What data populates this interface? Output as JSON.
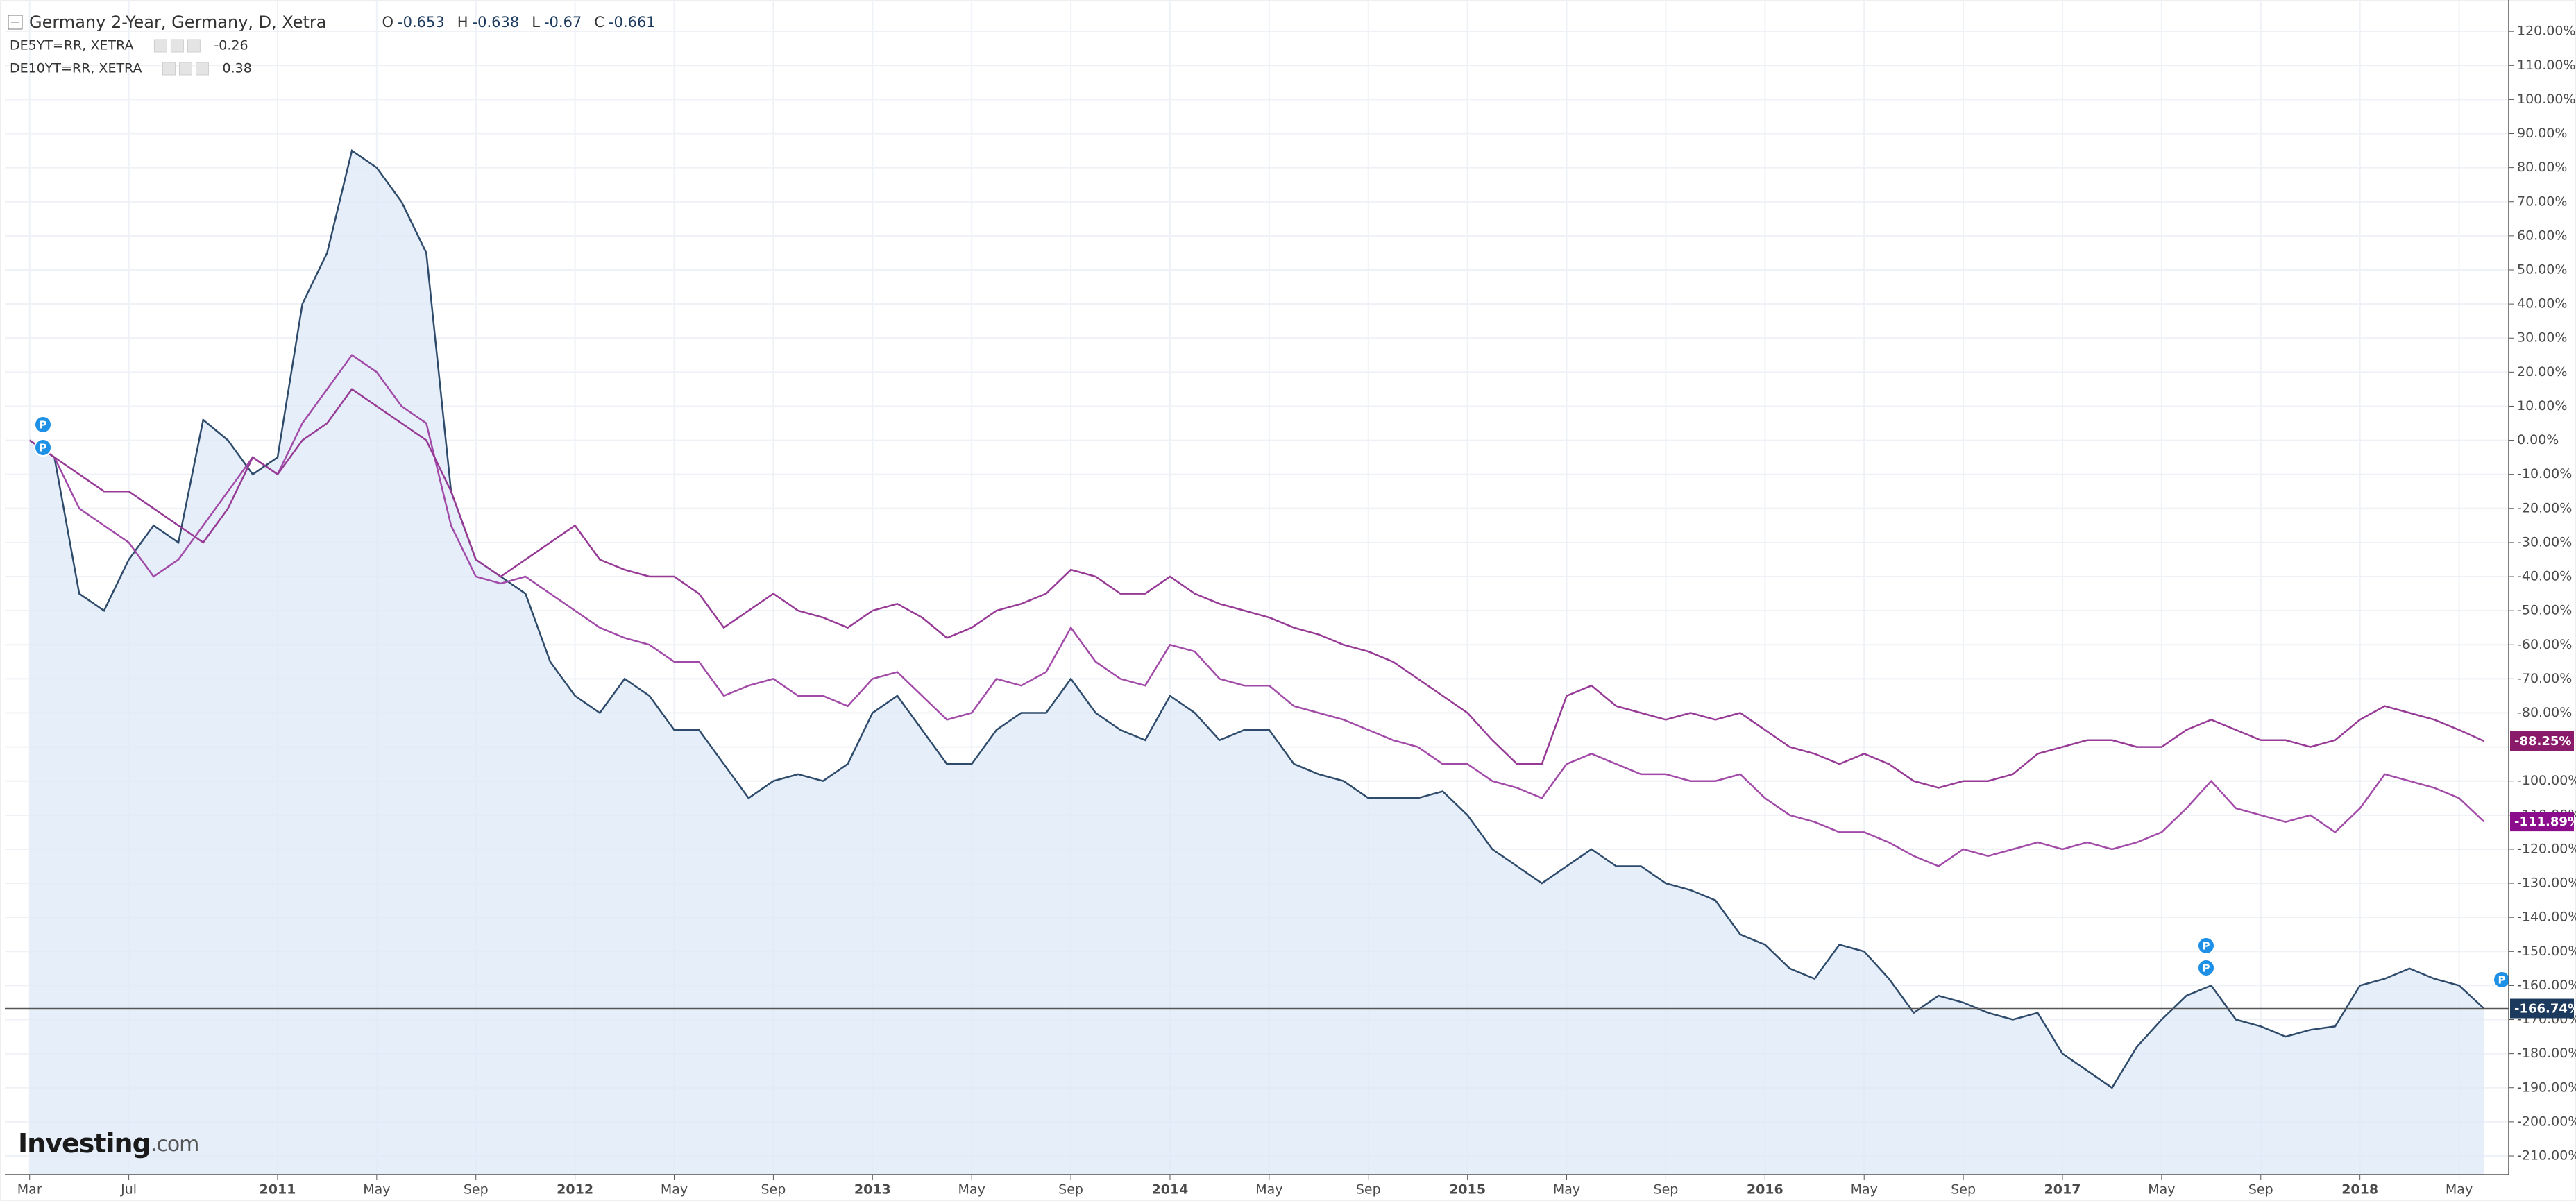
{
  "chart_data": {
    "type": "line",
    "title": "Germany 2-Year, Germany, D, Xetra",
    "ohlc": [
      {
        "label": "O",
        "value": -0.653
      },
      {
        "label": "H",
        "value": -0.638
      },
      {
        "label": "L",
        "value": -0.67
      },
      {
        "label": "C",
        "value": -0.661
      }
    ],
    "event_marker_label": "P",
    "branding": {
      "name": "Investing",
      "suffix": ".com"
    },
    "grid": true,
    "xlim": [
      "2010-02",
      "2018-07"
    ],
    "ylim": [
      -215.5,
      129.2
    ],
    "xticks": [
      {
        "value": "2010-03",
        "label": "Mar"
      },
      {
        "value": "2010-07",
        "label": "Jul"
      },
      {
        "value": "2011-01",
        "label": "2011"
      },
      {
        "value": "2011-05",
        "label": "May"
      },
      {
        "value": "2011-09",
        "label": "Sep"
      },
      {
        "value": "2012-01",
        "label": "2012"
      },
      {
        "value": "2012-05",
        "label": "May"
      },
      {
        "value": "2012-09",
        "label": "Sep"
      },
      {
        "value": "2013-01",
        "label": "2013"
      },
      {
        "value": "2013-05",
        "label": "May"
      },
      {
        "value": "2013-09",
        "label": "Sep"
      },
      {
        "value": "2014-01",
        "label": "2014"
      },
      {
        "value": "2014-05",
        "label": "May"
      },
      {
        "value": "2014-09",
        "label": "Sep"
      },
      {
        "value": "2015-01",
        "label": "2015"
      },
      {
        "value": "2015-05",
        "label": "May"
      },
      {
        "value": "2015-09",
        "label": "Sep"
      },
      {
        "value": "2016-01",
        "label": "2016"
      },
      {
        "value": "2016-05",
        "label": "May"
      },
      {
        "value": "2016-09",
        "label": "Sep"
      },
      {
        "value": "2017-01",
        "label": "2017"
      },
      {
        "value": "2017-05",
        "label": "May"
      },
      {
        "value": "2017-09",
        "label": "Sep"
      },
      {
        "value": "2018-01",
        "label": "2018"
      },
      {
        "value": "2018-05",
        "label": "May"
      }
    ],
    "yticks": [
      {
        "value": 120,
        "label": "120.00%"
      },
      {
        "value": 110,
        "label": "110.00%"
      },
      {
        "value": 100,
        "label": "100.00%"
      },
      {
        "value": 90,
        "label": "90.00%"
      },
      {
        "value": 80,
        "label": "80.00%"
      },
      {
        "value": 70,
        "label": "70.00%"
      },
      {
        "value": 60,
        "label": "60.00%"
      },
      {
        "value": 50,
        "label": "50.00%"
      },
      {
        "value": 40,
        "label": "40.00%"
      },
      {
        "value": 30,
        "label": "30.00%"
      },
      {
        "value": 20,
        "label": "20.00%"
      },
      {
        "value": 10,
        "label": "10.00%"
      },
      {
        "value": 0,
        "label": "0.00%"
      },
      {
        "value": -10,
        "label": "-10.00%"
      },
      {
        "value": -20,
        "label": "-20.00%"
      },
      {
        "value": -30,
        "label": "-30.00%"
      },
      {
        "value": -40,
        "label": "-40.00%"
      },
      {
        "value": -50,
        "label": "-50.00%"
      },
      {
        "value": -60,
        "label": "-60.00%"
      },
      {
        "value": -70,
        "label": "-70.00%"
      },
      {
        "value": -80,
        "label": "-80.00%"
      },
      {
        "value": -90,
        "label": "-90.00%"
      },
      {
        "value": -100,
        "label": "-100.00%"
      },
      {
        "value": -110,
        "label": "-110.00%"
      },
      {
        "value": -120,
        "label": "-120.00%"
      },
      {
        "value": -130,
        "label": "-130.00%"
      },
      {
        "value": -140,
        "label": "-140.00%"
      },
      {
        "value": -150,
        "label": "-150.00%"
      },
      {
        "value": -160,
        "label": "-160.00%"
      },
      {
        "value": -170,
        "label": "-170.00%"
      },
      {
        "value": -180,
        "label": "-180.00%"
      },
      {
        "value": -190,
        "label": "-190.00%"
      },
      {
        "value": -200,
        "label": "-200.00%"
      },
      {
        "value": -210,
        "label": "-210.00%"
      }
    ],
    "x": [
      "2010-03",
      "2010-04",
      "2010-05",
      "2010-06",
      "2010-07",
      "2010-08",
      "2010-09",
      "2010-10",
      "2010-11",
      "2010-12",
      "2011-01",
      "2011-02",
      "2011-03",
      "2011-04",
      "2011-05",
      "2011-06",
      "2011-07",
      "2011-08",
      "2011-09",
      "2011-10",
      "2011-11",
      "2011-12",
      "2012-01",
      "2012-02",
      "2012-03",
      "2012-04",
      "2012-05",
      "2012-06",
      "2012-07",
      "2012-08",
      "2012-09",
      "2012-10",
      "2012-11",
      "2012-12",
      "2013-01",
      "2013-02",
      "2013-03",
      "2013-04",
      "2013-05",
      "2013-06",
      "2013-07",
      "2013-08",
      "2013-09",
      "2013-10",
      "2013-11",
      "2013-12",
      "2014-01",
      "2014-02",
      "2014-03",
      "2014-04",
      "2014-05",
      "2014-06",
      "2014-07",
      "2014-08",
      "2014-09",
      "2014-10",
      "2014-11",
      "2014-12",
      "2015-01",
      "2015-02",
      "2015-03",
      "2015-04",
      "2015-05",
      "2015-06",
      "2015-07",
      "2015-08",
      "2015-09",
      "2015-10",
      "2015-11",
      "2015-12",
      "2016-01",
      "2016-02",
      "2016-03",
      "2016-04",
      "2016-05",
      "2016-06",
      "2016-07",
      "2016-08",
      "2016-09",
      "2016-10",
      "2016-11",
      "2016-12",
      "2017-01",
      "2017-02",
      "2017-03",
      "2017-04",
      "2017-05",
      "2017-06",
      "2017-07",
      "2017-08",
      "2017-09",
      "2017-10",
      "2017-11",
      "2017-12",
      "2018-01",
      "2018-02",
      "2018-03",
      "2018-04",
      "2018-05",
      "2018-06"
    ],
    "series": [
      {
        "name": "Germany 2-Year",
        "color": "#2f4b6b",
        "fill": "#dfeaf7",
        "end_label": "-166.74%",
        "end_color": "#1c3a5e",
        "values": [
          0,
          -5,
          -45,
          -50,
          -35,
          -25,
          -30,
          6,
          0,
          -10,
          -5,
          40,
          55,
          85,
          80,
          70,
          55,
          -15,
          -35,
          -40,
          -45,
          -65,
          -75,
          -80,
          -70,
          -75,
          -85,
          -85,
          -95,
          -105,
          -100,
          -98,
          -100,
          -95,
          -80,
          -75,
          -85,
          -95,
          -95,
          -85,
          -80,
          -80,
          -70,
          -80,
          -85,
          -88,
          -75,
          -80,
          -88,
          -85,
          -85,
          -95,
          -98,
          -100,
          -105,
          -105,
          -105,
          -103,
          -110,
          -120,
          -125,
          -130,
          -125,
          -120,
          -125,
          -125,
          -130,
          -132,
          -135,
          -145,
          -148,
          -155,
          -158,
          -148,
          -150,
          -158,
          -168,
          -163,
          -165,
          -168,
          -170,
          -168,
          -180,
          -185,
          -190,
          -178,
          -170,
          -163,
          -160,
          -170,
          -172,
          -175,
          -173,
          -172,
          -160,
          -158,
          -155,
          -158,
          -160,
          -166.74
        ]
      },
      {
        "name": "DE5YT=RR, XETRA",
        "quote": -0.26,
        "color": "#a24aa8",
        "quote_color": "#9c1f77",
        "end_label": "-111.89%",
        "end_color": "#8c0d8c",
        "values": [
          0,
          -5,
          -20,
          -25,
          -30,
          -40,
          -35,
          -25,
          -15,
          -5,
          -10,
          5,
          15,
          25,
          20,
          10,
          5,
          -25,
          -40,
          -42,
          -40,
          -45,
          -50,
          -55,
          -58,
          -60,
          -65,
          -65,
          -75,
          -72,
          -70,
          -75,
          -75,
          -78,
          -70,
          -68,
          -75,
          -82,
          -80,
          -70,
          -72,
          -68,
          -55,
          -65,
          -70,
          -72,
          -60,
          -62,
          -70,
          -72,
          -72,
          -78,
          -80,
          -82,
          -85,
          -88,
          -90,
          -95,
          -95,
          -100,
          -102,
          -105,
          -95,
          -92,
          -95,
          -98,
          -98,
          -100,
          -100,
          -98,
          -105,
          -110,
          -112,
          -115,
          -115,
          -118,
          -122,
          -125,
          -120,
          -122,
          -120,
          -118,
          -120,
          -118,
          -120,
          -118,
          -115,
          -108,
          -100,
          -108,
          -110,
          -112,
          -110,
          -115,
          -108,
          -98,
          -100,
          -102,
          -105,
          -111.89
        ]
      },
      {
        "name": "DE10YT=RR, XETRA",
        "quote": 0.38,
        "color": "#963a96",
        "quote_color": "#8a2a8a",
        "end_label": "-88.25%",
        "end_color": "#8a1a6a",
        "values": [
          0,
          -5,
          -10,
          -15,
          -15,
          -20,
          -25,
          -30,
          -20,
          -5,
          -10,
          0,
          5,
          15,
          10,
          5,
          0,
          -15,
          -35,
          -40,
          -35,
          -30,
          -25,
          -35,
          -38,
          -40,
          -40,
          -45,
          -55,
          -50,
          -45,
          -50,
          -52,
          -55,
          -50,
          -48,
          -52,
          -58,
          -55,
          -50,
          -48,
          -45,
          -38,
          -40,
          -45,
          -45,
          -40,
          -45,
          -48,
          -50,
          -52,
          -55,
          -57,
          -60,
          -62,
          -65,
          -70,
          -75,
          -80,
          -88,
          -95,
          -95,
          -75,
          -72,
          -78,
          -80,
          -82,
          -80,
          -82,
          -80,
          -85,
          -90,
          -92,
          -95,
          -92,
          -95,
          -100,
          -102,
          -100,
          -100,
          -98,
          -92,
          -90,
          -88,
          -88,
          -90,
          -90,
          -85,
          -82,
          -85,
          -88,
          -88,
          -90,
          -88,
          -82,
          -78,
          -80,
          -82,
          -85,
          -88.25
        ]
      }
    ]
  }
}
